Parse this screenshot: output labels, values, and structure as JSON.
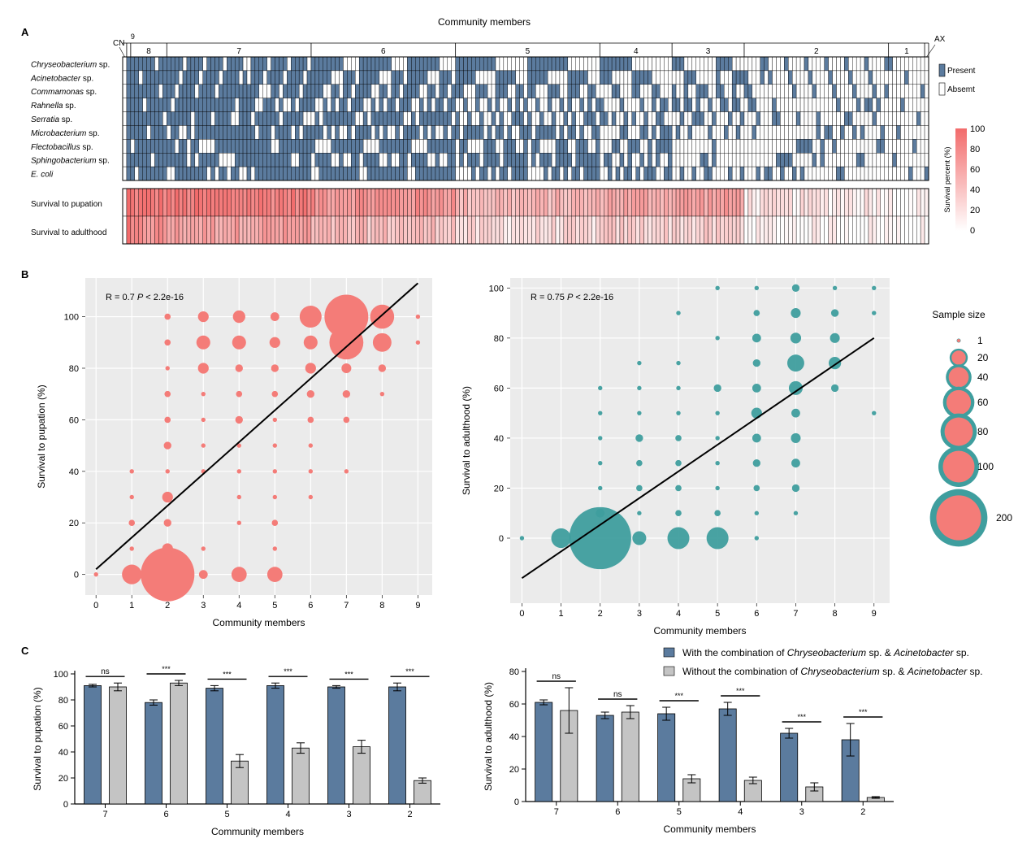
{
  "colors": {
    "present": "#5B7B9E",
    "absent": "#FFFFFF",
    "heat_high": "#F26B6B",
    "heat_low": "#FFFFFF",
    "pupation_bubble": "#F47C78",
    "adulthood_bubble": "#3F9E9E",
    "with_bar": "#5B7B9E",
    "without_bar": "#C4C4C4",
    "panel_bg": "#EBEBEB"
  },
  "panel_a": {
    "label": "A",
    "title": "Community members",
    "group_labels": [
      "CN",
      "9",
      "8",
      "7",
      "6",
      "5",
      "4",
      "3",
      "2",
      "1",
      "AX"
    ],
    "group_sizes": [
      1,
      1,
      9,
      36,
      36,
      36,
      18,
      18,
      36,
      9,
      1
    ],
    "species": [
      {
        "name": "Chryseobacterium",
        "suffix": " sp."
      },
      {
        "name": "Acinetobacter",
        "suffix": " sp."
      },
      {
        "name": "Commamonas",
        "suffix": " sp."
      },
      {
        "name": "Rahnella",
        "suffix": " sp."
      },
      {
        "name": "Serratia",
        "suffix": " sp."
      },
      {
        "name": "Microbacterium",
        "suffix": " sp."
      },
      {
        "name": "Flectobacillus",
        "suffix": " sp."
      },
      {
        "name": "Sphingobacterium",
        "suffix": " sp."
      },
      {
        "name": "E. coli",
        "suffix": ""
      }
    ],
    "legend_present": "Present",
    "legend_absent": "Absemt",
    "heat_rows": [
      "Survival to pupation",
      "Survival to adulthood"
    ],
    "colorbar_title": "Survival percent (%)",
    "colorbar_ticks": [
      "100",
      "80",
      "60",
      "40",
      "20",
      "0"
    ]
  },
  "panel_b": {
    "label": "B",
    "legend_title": "Sample size",
    "legend_items": [
      {
        "label": "1",
        "value": 1
      },
      {
        "label": "20",
        "value": 20
      },
      {
        "label": "40",
        "value": 40
      },
      {
        "label": "60",
        "value": 60
      },
      {
        "label": "80",
        "value": 80
      },
      {
        "label": "100",
        "value": 100
      },
      {
        "label": "200",
        "value": 200
      }
    ]
  },
  "panel_c": {
    "label": "C",
    "legend_with_prefix": "With the combination of ",
    "legend_without_prefix": "Without the combination of ",
    "legend_species1": "Chryseobacterium",
    "legend_mid": " sp. & ",
    "legend_species2": "Acinetobacter",
    "legend_suffix": " sp."
  },
  "chart_data": [
    {
      "type": "heatmap",
      "panel": "A",
      "xlabel": "Community members",
      "rows": [
        "Chryseobacterium sp.",
        "Acinetobacter sp.",
        "Commamonas sp.",
        "Rahnella sp.",
        "Serratia sp.",
        "Microbacterium sp.",
        "Flectobacillus sp.",
        "Sphingobacterium sp.",
        "E. coli"
      ],
      "column_groups": [
        "CN",
        "9",
        "8",
        "7",
        "6",
        "5",
        "4",
        "3",
        "2",
        "1",
        "AX"
      ],
      "group_sizes": [
        1,
        1,
        9,
        36,
        36,
        36,
        18,
        18,
        36,
        9,
        1
      ],
      "values": [
        "Present",
        "Absemt"
      ],
      "survival_rows": [
        "Survival to pupation",
        "Survival to adulthood"
      ],
      "colorbar": {
        "label": "Survival percent (%)",
        "range": [
          0,
          100
        ]
      },
      "pupation_group_mean": [
        0,
        100,
        88,
        86,
        72,
        46,
        58,
        62,
        15,
        5,
        0
      ],
      "adulthood_group_mean": [
        0,
        100,
        72,
        62,
        42,
        22,
        30,
        28,
        5,
        2,
        0
      ]
    },
    {
      "type": "scatter",
      "panel": "B-left",
      "annotation": "R = 0.7",
      "p_value": "P < 2.2e-16",
      "xlabel": "Community members",
      "ylabel": "Survival to pupation (%)",
      "xticks": [
        0,
        1,
        2,
        3,
        4,
        5,
        6,
        7,
        8,
        9
      ],
      "yticks": [
        0,
        20,
        40,
        60,
        80,
        100
      ],
      "xlim": [
        -0.3,
        9.4
      ],
      "ylim": [
        -8,
        115
      ],
      "regression": {
        "x": [
          0,
          9
        ],
        "y": [
          2,
          113
        ]
      },
      "points": [
        {
          "x": 0,
          "y": 0,
          "n": 1
        },
        {
          "x": 1,
          "y": 0,
          "n": 20
        },
        {
          "x": 1,
          "y": 10,
          "n": 1
        },
        {
          "x": 1,
          "y": 20,
          "n": 2
        },
        {
          "x": 1,
          "y": 30,
          "n": 1
        },
        {
          "x": 1,
          "y": 40,
          "n": 1
        },
        {
          "x": 2,
          "y": 0,
          "n": 150
        },
        {
          "x": 2,
          "y": 10,
          "n": 6
        },
        {
          "x": 2,
          "y": 20,
          "n": 3
        },
        {
          "x": 2,
          "y": 30,
          "n": 6
        },
        {
          "x": 2,
          "y": 40,
          "n": 1
        },
        {
          "x": 2,
          "y": 50,
          "n": 3
        },
        {
          "x": 2,
          "y": 60,
          "n": 2
        },
        {
          "x": 2,
          "y": 70,
          "n": 2
        },
        {
          "x": 2,
          "y": 80,
          "n": 1
        },
        {
          "x": 2,
          "y": 90,
          "n": 2
        },
        {
          "x": 2,
          "y": 100,
          "n": 2
        },
        {
          "x": 3,
          "y": 0,
          "n": 4
        },
        {
          "x": 3,
          "y": 10,
          "n": 1
        },
        {
          "x": 3,
          "y": 40,
          "n": 1
        },
        {
          "x": 3,
          "y": 50,
          "n": 1
        },
        {
          "x": 3,
          "y": 60,
          "n": 1
        },
        {
          "x": 3,
          "y": 70,
          "n": 1
        },
        {
          "x": 3,
          "y": 80,
          "n": 6
        },
        {
          "x": 3,
          "y": 90,
          "n": 10
        },
        {
          "x": 3,
          "y": 100,
          "n": 6
        },
        {
          "x": 4,
          "y": 0,
          "n": 12
        },
        {
          "x": 4,
          "y": 20,
          "n": 1
        },
        {
          "x": 4,
          "y": 30,
          "n": 1
        },
        {
          "x": 4,
          "y": 40,
          "n": 1
        },
        {
          "x": 4,
          "y": 50,
          "n": 1
        },
        {
          "x": 4,
          "y": 60,
          "n": 3
        },
        {
          "x": 4,
          "y": 70,
          "n": 2
        },
        {
          "x": 4,
          "y": 80,
          "n": 3
        },
        {
          "x": 4,
          "y": 90,
          "n": 10
        },
        {
          "x": 4,
          "y": 100,
          "n": 8
        },
        {
          "x": 5,
          "y": 0,
          "n": 12
        },
        {
          "x": 5,
          "y": 10,
          "n": 1
        },
        {
          "x": 5,
          "y": 20,
          "n": 2
        },
        {
          "x": 5,
          "y": 30,
          "n": 1
        },
        {
          "x": 5,
          "y": 40,
          "n": 1
        },
        {
          "x": 5,
          "y": 50,
          "n": 1
        },
        {
          "x": 5,
          "y": 60,
          "n": 1
        },
        {
          "x": 5,
          "y": 70,
          "n": 2
        },
        {
          "x": 5,
          "y": 80,
          "n": 3
        },
        {
          "x": 5,
          "y": 90,
          "n": 6
        },
        {
          "x": 5,
          "y": 100,
          "n": 4
        },
        {
          "x": 6,
          "y": 30,
          "n": 1
        },
        {
          "x": 6,
          "y": 40,
          "n": 1
        },
        {
          "x": 6,
          "y": 50,
          "n": 1
        },
        {
          "x": 6,
          "y": 60,
          "n": 2
        },
        {
          "x": 6,
          "y": 70,
          "n": 3
        },
        {
          "x": 6,
          "y": 80,
          "n": 6
        },
        {
          "x": 6,
          "y": 90,
          "n": 10
        },
        {
          "x": 6,
          "y": 100,
          "n": 25
        },
        {
          "x": 7,
          "y": 40,
          "n": 1
        },
        {
          "x": 7,
          "y": 60,
          "n": 2
        },
        {
          "x": 7,
          "y": 70,
          "n": 3
        },
        {
          "x": 7,
          "y": 80,
          "n": 5
        },
        {
          "x": 7,
          "y": 90,
          "n": 60
        },
        {
          "x": 7,
          "y": 100,
          "n": 100
        },
        {
          "x": 8,
          "y": 70,
          "n": 1
        },
        {
          "x": 8,
          "y": 80,
          "n": 3
        },
        {
          "x": 8,
          "y": 90,
          "n": 18
        },
        {
          "x": 8,
          "y": 100,
          "n": 30
        },
        {
          "x": 9,
          "y": 90,
          "n": 1
        },
        {
          "x": 9,
          "y": 100,
          "n": 1
        }
      ]
    },
    {
      "type": "scatter",
      "panel": "B-right",
      "annotation": "R = 0.75",
      "p_value": "P < 2.2e-16",
      "xlabel": "Community members",
      "ylabel": "Survival to adulthood (%)",
      "xticks": [
        0,
        1,
        2,
        3,
        4,
        5,
        6,
        7,
        8,
        9
      ],
      "yticks": [
        0,
        20,
        40,
        60,
        80,
        100
      ],
      "xlim": [
        -0.3,
        9.4
      ],
      "ylim": [
        -26,
        104
      ],
      "regression": {
        "x": [
          0,
          9
        ],
        "y": [
          -16,
          80
        ]
      },
      "points": [
        {
          "x": 0,
          "y": 0,
          "n": 1
        },
        {
          "x": 1,
          "y": 0,
          "n": 20
        },
        {
          "x": 2,
          "y": 0,
          "n": 200
        },
        {
          "x": 2,
          "y": 10,
          "n": 4
        },
        {
          "x": 2,
          "y": 20,
          "n": 1
        },
        {
          "x": 2,
          "y": 30,
          "n": 1
        },
        {
          "x": 2,
          "y": 40,
          "n": 1
        },
        {
          "x": 2,
          "y": 50,
          "n": 1
        },
        {
          "x": 2,
          "y": 60,
          "n": 1
        },
        {
          "x": 3,
          "y": 0,
          "n": 10
        },
        {
          "x": 3,
          "y": 10,
          "n": 1
        },
        {
          "x": 3,
          "y": 20,
          "n": 2
        },
        {
          "x": 3,
          "y": 30,
          "n": 2
        },
        {
          "x": 3,
          "y": 40,
          "n": 3
        },
        {
          "x": 3,
          "y": 50,
          "n": 1
        },
        {
          "x": 3,
          "y": 60,
          "n": 1
        },
        {
          "x": 3,
          "y": 70,
          "n": 1
        },
        {
          "x": 4,
          "y": 0,
          "n": 25
        },
        {
          "x": 4,
          "y": 10,
          "n": 2
        },
        {
          "x": 4,
          "y": 20,
          "n": 2
        },
        {
          "x": 4,
          "y": 30,
          "n": 2
        },
        {
          "x": 4,
          "y": 40,
          "n": 2
        },
        {
          "x": 4,
          "y": 50,
          "n": 1
        },
        {
          "x": 4,
          "y": 60,
          "n": 1
        },
        {
          "x": 4,
          "y": 70,
          "n": 1
        },
        {
          "x": 4,
          "y": 90,
          "n": 1
        },
        {
          "x": 5,
          "y": 0,
          "n": 25
        },
        {
          "x": 5,
          "y": 10,
          "n": 2
        },
        {
          "x": 5,
          "y": 20,
          "n": 1
        },
        {
          "x": 5,
          "y": 30,
          "n": 1
        },
        {
          "x": 5,
          "y": 40,
          "n": 1
        },
        {
          "x": 5,
          "y": 50,
          "n": 1
        },
        {
          "x": 5,
          "y": 60,
          "n": 3
        },
        {
          "x": 5,
          "y": 80,
          "n": 1
        },
        {
          "x": 5,
          "y": 100,
          "n": 1
        },
        {
          "x": 6,
          "y": 0,
          "n": 1
        },
        {
          "x": 6,
          "y": 10,
          "n": 1
        },
        {
          "x": 6,
          "y": 20,
          "n": 2
        },
        {
          "x": 6,
          "y": 30,
          "n": 3
        },
        {
          "x": 6,
          "y": 40,
          "n": 4
        },
        {
          "x": 6,
          "y": 50,
          "n": 6
        },
        {
          "x": 6,
          "y": 60,
          "n": 4
        },
        {
          "x": 6,
          "y": 70,
          "n": 3
        },
        {
          "x": 6,
          "y": 80,
          "n": 4
        },
        {
          "x": 6,
          "y": 90,
          "n": 2
        },
        {
          "x": 6,
          "y": 100,
          "n": 1
        },
        {
          "x": 7,
          "y": 10,
          "n": 1
        },
        {
          "x": 7,
          "y": 20,
          "n": 3
        },
        {
          "x": 7,
          "y": 30,
          "n": 4
        },
        {
          "x": 7,
          "y": 40,
          "n": 5
        },
        {
          "x": 7,
          "y": 50,
          "n": 4
        },
        {
          "x": 7,
          "y": 60,
          "n": 10
        },
        {
          "x": 7,
          "y": 70,
          "n": 15
        },
        {
          "x": 7,
          "y": 80,
          "n": 6
        },
        {
          "x": 7,
          "y": 90,
          "n": 5
        },
        {
          "x": 7,
          "y": 100,
          "n": 3
        },
        {
          "x": 8,
          "y": 60,
          "n": 3
        },
        {
          "x": 8,
          "y": 70,
          "n": 8
        },
        {
          "x": 8,
          "y": 80,
          "n": 5
        },
        {
          "x": 8,
          "y": 90,
          "n": 3
        },
        {
          "x": 8,
          "y": 100,
          "n": 1
        },
        {
          "x": 9,
          "y": 50,
          "n": 1
        },
        {
          "x": 9,
          "y": 90,
          "n": 1
        },
        {
          "x": 9,
          "y": 100,
          "n": 1
        }
      ]
    },
    {
      "type": "bar",
      "panel": "C-left",
      "xlabel": "Community members",
      "ylabel": "Survival to pupation (%)",
      "categories": [
        "7",
        "6",
        "5",
        "4",
        "3",
        "2"
      ],
      "ylim": [
        0,
        100
      ],
      "yticks": [
        0,
        20,
        40,
        60,
        80,
        100
      ],
      "series": [
        {
          "name": "With the combination of Chryseobacterium sp. & Acinetobacter sp.",
          "values": [
            91,
            78,
            89,
            91,
            90,
            90
          ],
          "errors": [
            1,
            2,
            2,
            2,
            1,
            3
          ]
        },
        {
          "name": "Without the combination of Chryseobacterium sp. & Acinetobacter sp.",
          "values": [
            90,
            93,
            33,
            43,
            44,
            18
          ],
          "errors": [
            3,
            2,
            5,
            4,
            5,
            2
          ]
        }
      ],
      "significance": [
        "ns",
        "***",
        "***",
        "***",
        "***",
        "***"
      ]
    },
    {
      "type": "bar",
      "panel": "C-right",
      "xlabel": "Community members",
      "ylabel": "Survival to adulthood (%)",
      "categories": [
        "7",
        "6",
        "5",
        "4",
        "3",
        "2"
      ],
      "ylim": [
        0,
        80
      ],
      "yticks": [
        0,
        20,
        40,
        60,
        80
      ],
      "series": [
        {
          "name": "With the combination of Chryseobacterium sp. & Acinetobacter sp.",
          "values": [
            61,
            53,
            54,
            57,
            42,
            38
          ],
          "errors": [
            1.5,
            2,
            4,
            4,
            3,
            10
          ]
        },
        {
          "name": "Without the combination of Chryseobacterium sp. & Acinetobacter sp.",
          "values": [
            56,
            55,
            14,
            13,
            9,
            2.5
          ],
          "errors": [
            14,
            4,
            2.5,
            2,
            2.5,
            0.5
          ]
        }
      ],
      "significance": [
        "ns",
        "ns",
        "***",
        "***",
        "***",
        "***"
      ]
    }
  ]
}
